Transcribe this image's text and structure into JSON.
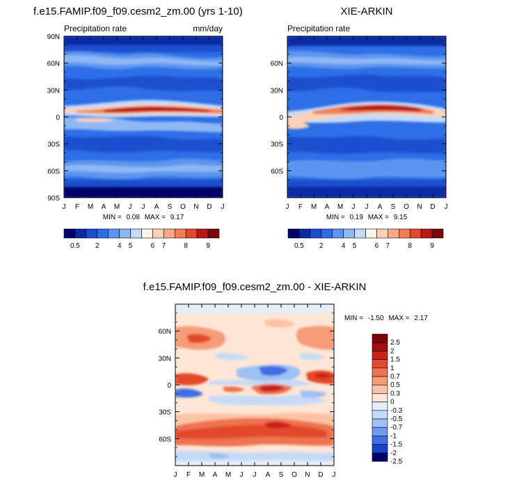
{
  "chart_data": [
    {
      "type": "heatmap",
      "title": "f.e15.FAMIP.f09_f09.cesm2_zm.00 (yrs 1-10)",
      "subtitle_left": "Precipitation rate",
      "subtitle_right": "mm/day",
      "x_ticks": [
        "J",
        "F",
        "M",
        "A",
        "M",
        "J",
        "J",
        "A",
        "S",
        "O",
        "N",
        "D",
        "J"
      ],
      "y_ticks": [
        "90N",
        "60N",
        "30N",
        "0",
        "30S",
        "60S",
        "90S"
      ],
      "y_tick_values": [
        90,
        60,
        30,
        0,
        -30,
        -60,
        -90
      ],
      "ylim": [
        -90,
        90
      ],
      "stats": {
        "min_label": "MIN =",
        "min": "0.08",
        "max_label": "MAX =",
        "max": "9.17"
      },
      "colorbar": {
        "orientation": "horizontal",
        "labels": [
          "0.5",
          "2",
          "4",
          "5",
          "6",
          "7",
          "8",
          "9"
        ]
      }
    },
    {
      "type": "heatmap",
      "title": "XIE-ARKIN",
      "subtitle_left": "Precipitation rate",
      "subtitle_right": "",
      "x_ticks": [
        "J",
        "F",
        "M",
        "A",
        "M",
        "J",
        "J",
        "A",
        "S",
        "O",
        "N",
        "D",
        "J"
      ],
      "y_ticks": [
        "60N",
        "30N",
        "0",
        "30S",
        "60S"
      ],
      "y_tick_values": [
        60,
        30,
        0,
        -30,
        -60
      ],
      "ylim": [
        -90,
        90
      ],
      "stats": {
        "min_label": "MIN =",
        "min": "0.19",
        "max_label": "MAX =",
        "max": "9.15"
      },
      "colorbar": {
        "orientation": "horizontal",
        "labels": [
          "0.5",
          "2",
          "4",
          "5",
          "6",
          "7",
          "8",
          "9"
        ]
      }
    },
    {
      "type": "heatmap",
      "title": "f.e15.FAMIP.f09_f09.cesm2_zm.00 - XIE-ARKIN",
      "x_ticks": [
        "J",
        "F",
        "M",
        "A",
        "M",
        "J",
        "J",
        "A",
        "S",
        "O",
        "N",
        "D",
        "J"
      ],
      "y_ticks": [
        "60N",
        "30N",
        "0",
        "30S",
        "60S"
      ],
      "y_tick_values": [
        60,
        30,
        0,
        -30,
        -60
      ],
      "ylim": [
        -90,
        90
      ],
      "stats": {
        "min_label": "MIN =",
        "min": "-1.50",
        "max_label": "MAX =",
        "max": "2.17"
      },
      "colorbar": {
        "orientation": "vertical",
        "labels": [
          "2.5",
          "2",
          "1.5",
          "1",
          "0.7",
          "0.5",
          "0.3",
          "0",
          "-0.3",
          "-0.5",
          "-0.7",
          "-1",
          "-1.5",
          "-2",
          "-2.5"
        ]
      }
    }
  ],
  "colors": {
    "precip_scale": [
      "#03046b",
      "#0a2aa6",
      "#1a4fd0",
      "#2e6ee6",
      "#5b95ef",
      "#8fb7f4",
      "#c4daf8",
      "#fdf3ea",
      "#fbd2b6",
      "#f7aa83",
      "#f07d53",
      "#e2492c",
      "#bb1717",
      "#7a0606"
    ],
    "diff_scale": [
      "#7a0606",
      "#a20f0f",
      "#c8231a",
      "#e24a2c",
      "#ee7350",
      "#f59b78",
      "#fac3a6",
      "#fde6d6",
      "#e3eefb",
      "#c4daf8",
      "#9fc0f4",
      "#6f9bee",
      "#3f6ee2",
      "#1c41c4",
      "#03046b"
    ]
  }
}
